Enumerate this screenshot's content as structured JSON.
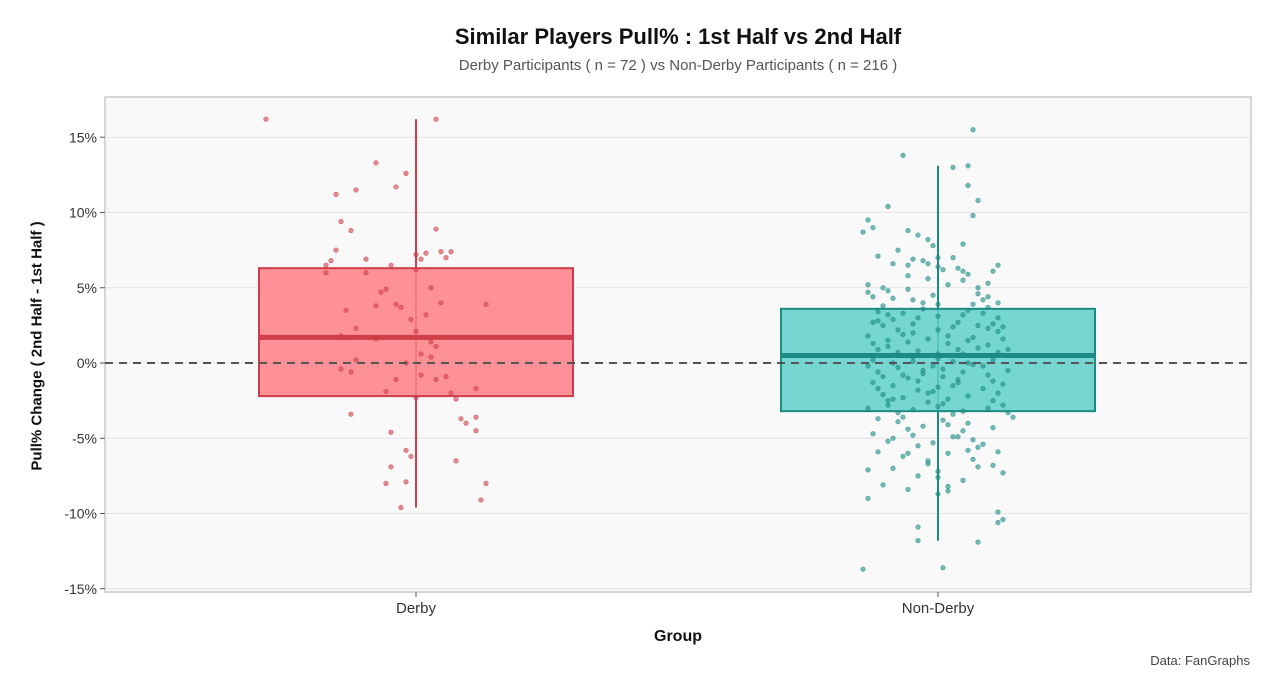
{
  "chart_data": {
    "type": "box",
    "title": "Similar Players Pull% : 1st Half vs 2nd Half",
    "subtitle": "Derby Participants ( n = 72 ) vs  Non-Derby Participants ( n = 216 )",
    "xlabel": "Group",
    "ylabel": "Pull% Change ( 2nd Half - 1st Half )",
    "caption": "Data: FanGraphs",
    "ylim": [
      -15,
      17.5
    ],
    "yticks": [
      15,
      10,
      5,
      0,
      -5,
      -10,
      -15
    ],
    "ytick_labels": [
      "15%",
      "10%",
      "5%",
      "0%",
      "-5%",
      "-10%",
      "-15%"
    ],
    "reference_line": 0,
    "categories": [
      "Derby",
      "Non-Derby"
    ],
    "boxes": [
      {
        "name": "Derby",
        "n": 72,
        "min": -9.6,
        "q1": -2.2,
        "median": 1.7,
        "q3": 6.3,
        "max": 16.2,
        "fill": "#ff7f85",
        "stroke": "#cf3e49",
        "points": [
          [
            -0.3,
            16.2
          ],
          [
            0.04,
            16.2
          ],
          [
            -0.08,
            13.3
          ],
          [
            -0.02,
            12.6
          ],
          [
            -0.12,
            11.5
          ],
          [
            -0.04,
            11.7
          ],
          [
            -0.16,
            11.2
          ],
          [
            -0.15,
            9.4
          ],
          [
            -0.13,
            8.8
          ],
          [
            0.04,
            8.9
          ],
          [
            -0.16,
            7.5
          ],
          [
            -0.17,
            6.8
          ],
          [
            -0.18,
            6.5
          ],
          [
            0.0,
            7.2
          ],
          [
            -0.1,
            6.9
          ],
          [
            0.05,
            7.4
          ],
          [
            0.07,
            7.4
          ],
          [
            0.02,
            7.3
          ],
          [
            0.06,
            7.0
          ],
          [
            0.01,
            6.9
          ],
          [
            -0.05,
            6.5
          ],
          [
            -0.1,
            6.0
          ],
          [
            0.0,
            6.2
          ],
          [
            -0.18,
            6.0
          ],
          [
            -0.06,
            4.9
          ],
          [
            -0.07,
            4.7
          ],
          [
            -0.04,
            3.9
          ],
          [
            -0.08,
            3.8
          ],
          [
            0.05,
            4.0
          ],
          [
            -0.03,
            3.7
          ],
          [
            0.02,
            3.2
          ],
          [
            -0.14,
            3.5
          ],
          [
            0.03,
            5.0
          ],
          [
            0.14,
            3.9
          ],
          [
            -0.01,
            2.9
          ],
          [
            -0.12,
            2.3
          ],
          [
            0.0,
            2.1
          ],
          [
            -0.14,
            1.7
          ],
          [
            -0.15,
            1.8
          ],
          [
            -0.08,
            1.6
          ],
          [
            0.03,
            1.4
          ],
          [
            0.04,
            1.1
          ],
          [
            0.01,
            0.6
          ],
          [
            0.03,
            0.4
          ],
          [
            -0.12,
            0.2
          ],
          [
            -0.02,
            0.0
          ],
          [
            -0.15,
            -0.4
          ],
          [
            -0.13,
            -0.6
          ],
          [
            -0.04,
            -1.1
          ],
          [
            0.01,
            -0.8
          ],
          [
            0.06,
            -0.9
          ],
          [
            0.04,
            -1.1
          ],
          [
            0.12,
            -1.7
          ],
          [
            -0.06,
            -1.9
          ],
          [
            0.07,
            -2.0
          ],
          [
            0.08,
            -2.4
          ],
          [
            0.0,
            -2.3
          ],
          [
            0.09,
            -3.7
          ],
          [
            0.1,
            -4.0
          ],
          [
            0.12,
            -3.6
          ],
          [
            0.12,
            -4.5
          ],
          [
            -0.13,
            -3.4
          ],
          [
            -0.05,
            -4.6
          ],
          [
            -0.02,
            -5.8
          ],
          [
            -0.01,
            -6.2
          ],
          [
            0.08,
            -6.5
          ],
          [
            -0.05,
            -6.9
          ],
          [
            -0.02,
            -7.9
          ],
          [
            -0.06,
            -8.0
          ],
          [
            0.14,
            -8.0
          ],
          [
            0.13,
            -9.1
          ],
          [
            -0.03,
            -9.6
          ]
        ]
      },
      {
        "name": "Non-Derby",
        "n": 216,
        "min": -11.8,
        "q1": -3.2,
        "median": 0.5,
        "q3": 3.6,
        "max": 13.1,
        "fill": "#5fd0c9",
        "stroke": "#1c8b84",
        "points": [
          [
            0.07,
            15.5
          ],
          [
            -0.07,
            13.8
          ],
          [
            0.06,
            13.1
          ],
          [
            0.03,
            13.0
          ],
          [
            0.06,
            11.8
          ],
          [
            0.08,
            10.8
          ],
          [
            0.07,
            9.8
          ],
          [
            -0.1,
            10.4
          ],
          [
            -0.14,
            9.5
          ],
          [
            -0.13,
            9.0
          ],
          [
            -0.15,
            8.7
          ],
          [
            -0.06,
            8.8
          ],
          [
            -0.04,
            8.5
          ],
          [
            -0.02,
            8.2
          ],
          [
            -0.01,
            7.8
          ],
          [
            0.05,
            7.9
          ],
          [
            -0.08,
            7.5
          ],
          [
            0.0,
            7.0
          ],
          [
            -0.05,
            6.9
          ],
          [
            -0.03,
            6.8
          ],
          [
            -0.02,
            6.6
          ],
          [
            -0.06,
            6.5
          ],
          [
            0.01,
            6.2
          ],
          [
            0.04,
            6.3
          ],
          [
            0.05,
            6.1
          ],
          [
            0.06,
            5.9
          ],
          [
            0.12,
            6.5
          ],
          [
            0.11,
            6.1
          ],
          [
            -0.14,
            5.2
          ],
          [
            -0.11,
            5.0
          ],
          [
            -0.1,
            4.8
          ],
          [
            -0.14,
            4.7
          ],
          [
            -0.06,
            4.9
          ],
          [
            0.02,
            5.2
          ],
          [
            0.05,
            5.5
          ],
          [
            0.08,
            5.0
          ],
          [
            -0.09,
            4.3
          ],
          [
            -0.05,
            4.2
          ],
          [
            -0.03,
            4.0
          ],
          [
            0.0,
            3.9
          ],
          [
            0.07,
            3.9
          ],
          [
            0.09,
            4.2
          ],
          [
            0.1,
            4.4
          ],
          [
            0.12,
            4.0
          ],
          [
            -0.12,
            3.4
          ],
          [
            -0.1,
            3.2
          ],
          [
            -0.07,
            3.3
          ],
          [
            -0.04,
            3.0
          ],
          [
            0.0,
            3.1
          ],
          [
            0.05,
            3.2
          ],
          [
            0.09,
            3.3
          ],
          [
            0.12,
            3.0
          ],
          [
            -0.13,
            2.7
          ],
          [
            -0.11,
            2.5
          ],
          [
            -0.08,
            2.2
          ],
          [
            -0.05,
            2.0
          ],
          [
            0.0,
            2.2
          ],
          [
            0.03,
            2.4
          ],
          [
            0.08,
            2.5
          ],
          [
            0.11,
            2.6
          ],
          [
            0.13,
            2.4
          ],
          [
            -0.14,
            1.8
          ],
          [
            -0.1,
            1.5
          ],
          [
            -0.06,
            1.4
          ],
          [
            -0.02,
            1.6
          ],
          [
            0.02,
            1.3
          ],
          [
            0.06,
            1.5
          ],
          [
            0.1,
            1.2
          ],
          [
            0.13,
            1.6
          ],
          [
            -0.12,
            0.9
          ],
          [
            -0.08,
            0.7
          ],
          [
            -0.04,
            0.8
          ],
          [
            0.0,
            0.6
          ],
          [
            0.04,
            0.9
          ],
          [
            0.08,
            0.5
          ],
          [
            0.12,
            0.7
          ],
          [
            -0.13,
            0.2
          ],
          [
            -0.09,
            0.0
          ],
          [
            -0.05,
            0.1
          ],
          [
            -0.01,
            -0.2
          ],
          [
            0.03,
            0.1
          ],
          [
            0.07,
            -0.1
          ],
          [
            0.11,
            0.2
          ],
          [
            -0.12,
            -0.6
          ],
          [
            -0.07,
            -0.8
          ],
          [
            -0.03,
            -0.5
          ],
          [
            0.01,
            -0.9
          ],
          [
            0.05,
            -0.6
          ],
          [
            0.1,
            -0.8
          ],
          [
            0.14,
            -0.5
          ],
          [
            -0.13,
            -1.3
          ],
          [
            -0.09,
            -1.5
          ],
          [
            -0.04,
            -1.2
          ],
          [
            0.0,
            -1.6
          ],
          [
            0.04,
            -1.3
          ],
          [
            0.09,
            -1.7
          ],
          [
            0.13,
            -1.4
          ],
          [
            -0.11,
            -2.1
          ],
          [
            -0.07,
            -2.3
          ],
          [
            -0.02,
            -2.0
          ],
          [
            0.02,
            -2.4
          ],
          [
            0.06,
            -2.2
          ],
          [
            0.11,
            -2.5
          ],
          [
            -0.14,
            -3.0
          ],
          [
            -0.1,
            -2.8
          ],
          [
            -0.05,
            -3.1
          ],
          [
            0.0,
            -2.9
          ],
          [
            0.05,
            -3.2
          ],
          [
            0.1,
            -3.0
          ],
          [
            0.15,
            -3.6
          ],
          [
            -0.12,
            -3.7
          ],
          [
            -0.08,
            -3.9
          ],
          [
            -0.03,
            -4.2
          ],
          [
            0.01,
            -3.8
          ],
          [
            0.06,
            -4.0
          ],
          [
            0.11,
            -4.3
          ],
          [
            -0.13,
            -4.7
          ],
          [
            -0.09,
            -5.0
          ],
          [
            -0.05,
            -4.8
          ],
          [
            -0.01,
            -5.3
          ],
          [
            0.03,
            -4.9
          ],
          [
            0.08,
            -5.6
          ],
          [
            0.12,
            -5.9
          ],
          [
            -0.12,
            -5.9
          ],
          [
            -0.07,
            -6.2
          ],
          [
            -0.02,
            -6.5
          ],
          [
            0.02,
            -6.0
          ],
          [
            0.07,
            -6.4
          ],
          [
            -0.14,
            -7.1
          ],
          [
            -0.09,
            -7.0
          ],
          [
            -0.04,
            -7.5
          ],
          [
            0.0,
            -7.2
          ],
          [
            0.05,
            -7.8
          ],
          [
            -0.11,
            -8.1
          ],
          [
            -0.06,
            -8.4
          ],
          [
            0.0,
            -8.7
          ],
          [
            0.02,
            -8.5
          ],
          [
            -0.14,
            -9.0
          ],
          [
            0.12,
            -9.9
          ],
          [
            0.13,
            -10.4
          ],
          [
            0.12,
            -10.6
          ],
          [
            -0.04,
            -10.9
          ],
          [
            -0.04,
            -11.8
          ],
          [
            -0.15,
            -13.7
          ],
          [
            0.01,
            -13.6
          ],
          [
            0.08,
            -11.9
          ],
          [
            -0.13,
            4.4
          ],
          [
            -0.11,
            3.8
          ],
          [
            -0.09,
            2.9
          ],
          [
            -0.07,
            1.9
          ],
          [
            -0.05,
            0.4
          ],
          [
            -0.03,
            -0.7
          ],
          [
            -0.01,
            -1.9
          ],
          [
            0.01,
            -2.7
          ],
          [
            0.03,
            -3.4
          ],
          [
            0.05,
            -4.5
          ],
          [
            0.07,
            -5.1
          ],
          [
            0.09,
            -5.4
          ],
          [
            0.11,
            -6.8
          ],
          [
            0.13,
            -7.3
          ],
          [
            -0.12,
            2.8
          ],
          [
            -0.1,
            1.1
          ],
          [
            -0.08,
            -0.3
          ],
          [
            -0.06,
            -1.0
          ],
          [
            -0.04,
            -1.8
          ],
          [
            -0.02,
            -2.6
          ],
          [
            0.0,
            0.3
          ],
          [
            0.02,
            1.8
          ],
          [
            0.04,
            2.7
          ],
          [
            0.06,
            3.5
          ],
          [
            0.08,
            4.6
          ],
          [
            0.1,
            3.7
          ],
          [
            0.12,
            2.1
          ],
          [
            0.14,
            0.9
          ],
          [
            -0.14,
            -0.2
          ],
          [
            -0.12,
            -1.7
          ],
          [
            -0.1,
            -2.5
          ],
          [
            -0.08,
            -3.3
          ],
          [
            -0.06,
            -4.4
          ],
          [
            -0.04,
            -5.5
          ],
          [
            -0.02,
            -6.7
          ],
          [
            0.0,
            -7.6
          ],
          [
            0.02,
            -8.2
          ],
          [
            0.04,
            -1.1
          ],
          [
            0.06,
            0.0
          ],
          [
            0.08,
            1.0
          ],
          [
            0.1,
            2.3
          ],
          [
            0.12,
            -2.0
          ],
          [
            0.14,
            -3.3
          ],
          [
            -0.13,
            1.3
          ],
          [
            -0.11,
            -0.9
          ],
          [
            -0.09,
            -2.4
          ],
          [
            -0.07,
            -3.6
          ],
          [
            -0.05,
            2.6
          ],
          [
            -0.03,
            3.6
          ],
          [
            -0.01,
            4.5
          ],
          [
            0.01,
            -0.4
          ],
          [
            0.03,
            -1.5
          ],
          [
            0.05,
            0.6
          ],
          [
            0.07,
            1.7
          ],
          [
            0.09,
            -0.2
          ],
          [
            0.11,
            -1.2
          ],
          [
            0.13,
            -2.8
          ],
          [
            -0.1,
            -5.2
          ],
          [
            -0.06,
            -6.0
          ],
          [
            0.02,
            -4.1
          ],
          [
            0.04,
            -4.9
          ],
          [
            0.06,
            -5.8
          ],
          [
            0.08,
            -6.9
          ],
          [
            0.1,
            5.3
          ],
          [
            -0.02,
            5.6
          ],
          [
            -0.06,
            5.8
          ],
          [
            0.0,
            6.4
          ],
          [
            0.03,
            7.0
          ],
          [
            -0.09,
            6.6
          ],
          [
            -0.12,
            7.1
          ]
        ]
      }
    ]
  }
}
